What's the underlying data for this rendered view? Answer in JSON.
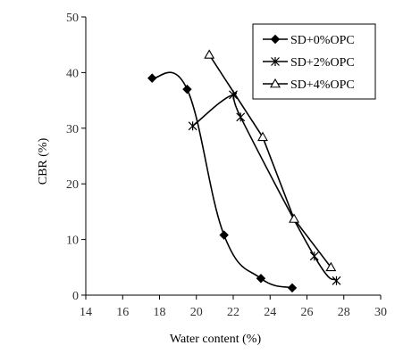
{
  "chart_data": {
    "type": "line",
    "xlabel": "Water content (%)",
    "ylabel": "CBR (%)",
    "xlim": [
      14,
      30
    ],
    "ylim": [
      0,
      50
    ],
    "xticks": [
      14,
      16,
      18,
      20,
      22,
      24,
      26,
      28,
      30
    ],
    "yticks": [
      0,
      10,
      20,
      30,
      40,
      50
    ],
    "grid": false,
    "legend_position": "top-right",
    "series": [
      {
        "name": "SD+0%OPC",
        "marker": "diamond-filled",
        "color": "#000000",
        "x": [
          17.6,
          19.5,
          21.5,
          23.5,
          25.2
        ],
        "y": [
          39.0,
          37.0,
          10.8,
          3.0,
          1.3
        ]
      },
      {
        "name": "SD+2%OPC",
        "marker": "asterisk",
        "color": "#000000",
        "x": [
          19.8,
          22.0,
          22.4,
          26.4,
          27.6
        ],
        "y": [
          30.4,
          36.0,
          32.0,
          7.0,
          2.6
        ]
      },
      {
        "name": "SD+4%OPC",
        "marker": "triangle-open",
        "color": "#000000",
        "x": [
          20.7,
          23.6,
          25.3,
          27.3
        ],
        "y": [
          43.2,
          28.4,
          13.7,
          5.0
        ]
      }
    ]
  }
}
